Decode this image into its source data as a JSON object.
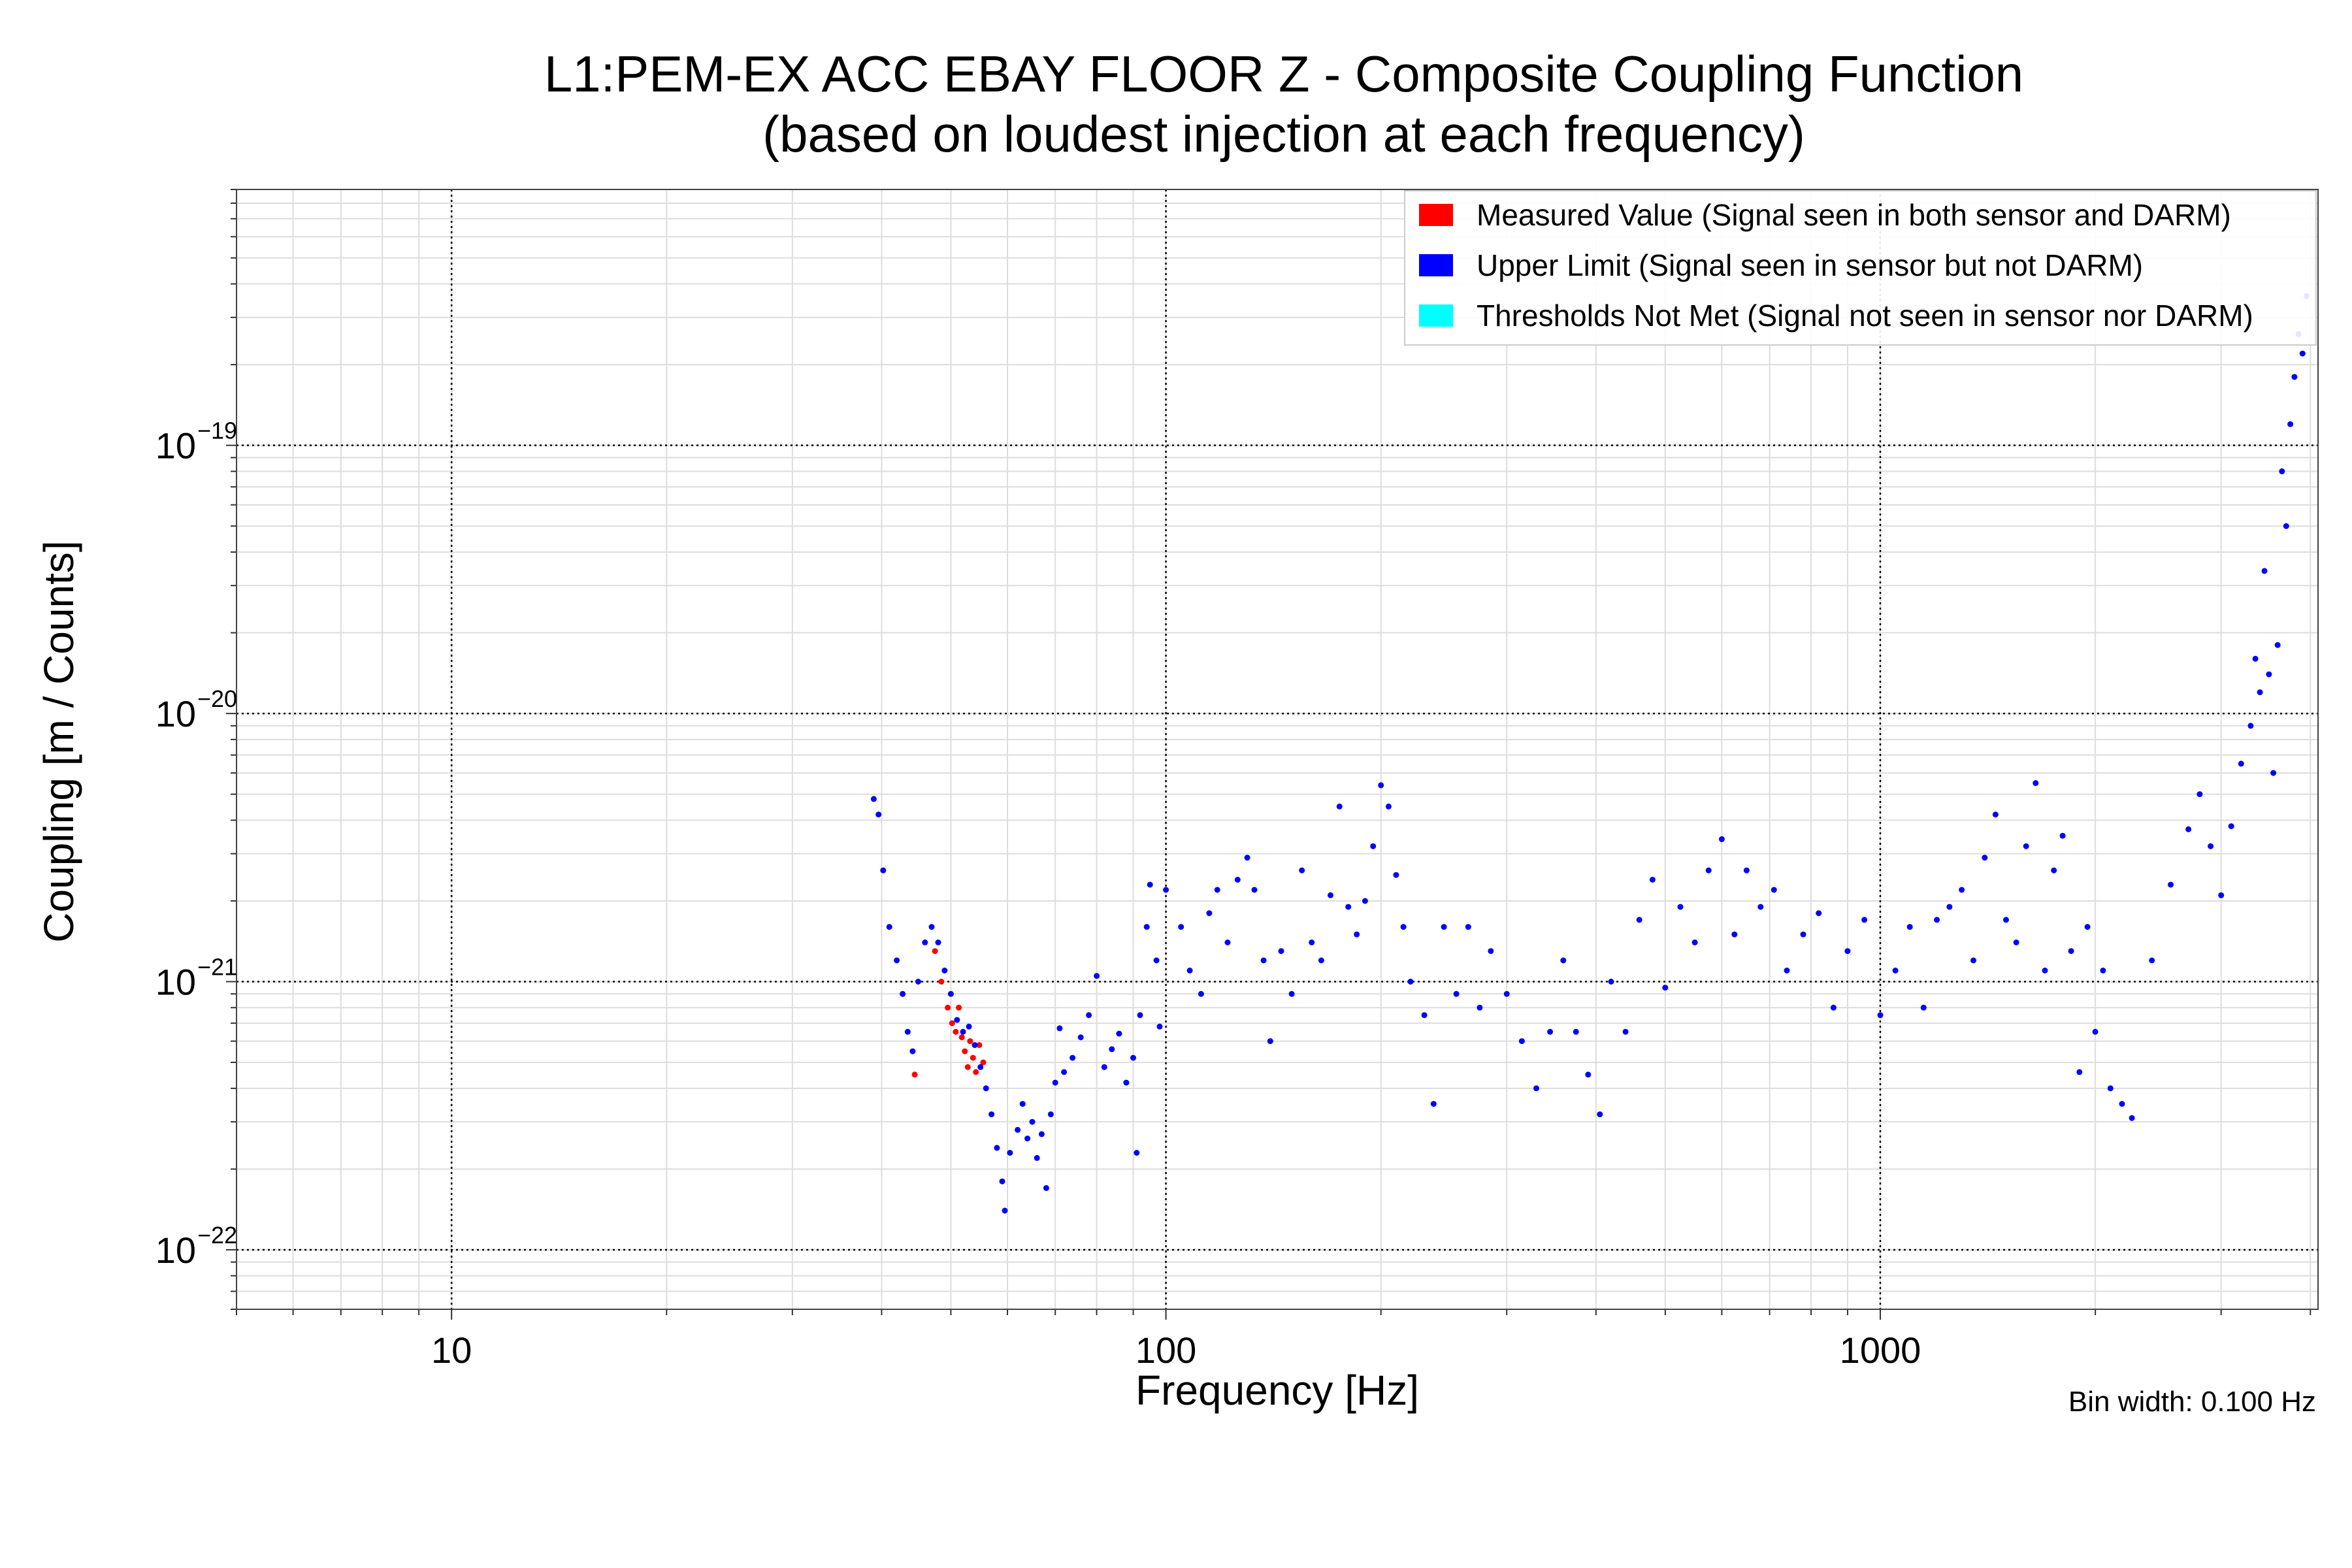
{
  "chart_data": {
    "type": "scatter",
    "title": "L1:PEM-EX ACC EBAY FLOOR Z - Composite Coupling Function",
    "subtitle": "(based on loudest injection at each frequency)",
    "xlabel": "Frequency [Hz]",
    "ylabel": "Coupling [m / Counts]",
    "xscale": "log",
    "yscale": "log",
    "xlim": [
      5,
      4100
    ],
    "ylim": [
      6e-23,
      9e-19
    ],
    "x_ticks": [
      {
        "value": 10,
        "label": "10"
      },
      {
        "value": 100,
        "label": "100"
      },
      {
        "value": 1000,
        "label": "1000"
      }
    ],
    "y_ticks": [
      {
        "value": 1e-22,
        "base": "10",
        "exp": "−22"
      },
      {
        "value": 1e-21,
        "base": "10",
        "exp": "−21"
      },
      {
        "value": 1e-20,
        "base": "10",
        "exp": "−20"
      },
      {
        "value": 1e-19,
        "base": "10",
        "exp": "−19"
      }
    ],
    "grid": true,
    "legend_position": "top-right",
    "annotation": "Bin width: 0.100 Hz",
    "series": [
      {
        "name": "Measured Value (Signal seen in both sensor and DARM)",
        "color": "#ff0000",
        "points": [
          [
            44.5,
            4.5e-22
          ],
          [
            47.5,
            1.3e-21
          ],
          [
            48.5,
            1e-21
          ],
          [
            49.5,
            8e-22
          ],
          [
            50.2,
            7e-22
          ],
          [
            50.8,
            6.5e-22
          ],
          [
            51.3,
            8e-22
          ],
          [
            51.8,
            6.2e-22
          ],
          [
            52.3,
            5.5e-22
          ],
          [
            52.8,
            4.8e-22
          ],
          [
            53.2,
            6e-22
          ],
          [
            53.7,
            5.2e-22
          ],
          [
            54.2,
            4.6e-22
          ],
          [
            54.8,
            5.8e-22
          ],
          [
            55.5,
            5e-22
          ]
        ]
      },
      {
        "name": "Upper Limit (Signal seen in sensor but not DARM)",
        "color": "#0000ff",
        "points": [
          [
            39,
            4.8e-21
          ],
          [
            39.6,
            4.2e-21
          ],
          [
            40.2,
            2.6e-21
          ],
          [
            41,
            1.6e-21
          ],
          [
            42,
            1.2e-21
          ],
          [
            42.8,
            9e-22
          ],
          [
            43.5,
            6.5e-22
          ],
          [
            44.2,
            5.5e-22
          ],
          [
            45,
            1e-21
          ],
          [
            46,
            1.4e-21
          ],
          [
            47,
            1.6e-21
          ],
          [
            48,
            1.4e-21
          ],
          [
            49,
            1.1e-21
          ],
          [
            50,
            9e-22
          ],
          [
            51,
            7.2e-22
          ],
          [
            52,
            6.5e-22
          ],
          [
            53,
            6.8e-22
          ],
          [
            54,
            5.8e-22
          ],
          [
            55,
            4.8e-22
          ],
          [
            56,
            4e-22
          ],
          [
            57,
            3.2e-22
          ],
          [
            58,
            2.4e-22
          ],
          [
            59,
            1.8e-22
          ],
          [
            59.5,
            1.4e-22
          ],
          [
            60.5,
            2.3e-22
          ],
          [
            62,
            2.8e-22
          ],
          [
            63,
            3.5e-22
          ],
          [
            64,
            2.6e-22
          ],
          [
            65,
            3e-22
          ],
          [
            66,
            2.2e-22
          ],
          [
            67,
            2.7e-22
          ],
          [
            68,
            1.7e-22
          ],
          [
            69,
            3.2e-22
          ],
          [
            70,
            4.2e-22
          ],
          [
            71,
            6.7e-22
          ],
          [
            72,
            4.6e-22
          ],
          [
            74,
            5.2e-22
          ],
          [
            76,
            6.2e-22
          ],
          [
            78,
            7.5e-22
          ],
          [
            80,
            1.05e-21
          ],
          [
            82,
            4.8e-22
          ],
          [
            84,
            5.6e-22
          ],
          [
            86,
            6.4e-22
          ],
          [
            88,
            4.2e-22
          ],
          [
            90,
            5.2e-22
          ],
          [
            91,
            2.3e-22
          ],
          [
            92,
            7.5e-22
          ],
          [
            94,
            1.6e-21
          ],
          [
            95,
            2.3e-21
          ],
          [
            97,
            1.2e-21
          ],
          [
            98,
            6.8e-22
          ],
          [
            100,
            2.2e-21
          ],
          [
            105,
            1.6e-21
          ],
          [
            108,
            1.1e-21
          ],
          [
            112,
            9e-22
          ],
          [
            115,
            1.8e-21
          ],
          [
            118,
            2.2e-21
          ],
          [
            122,
            1.4e-21
          ],
          [
            126,
            2.4e-21
          ],
          [
            130,
            2.9e-21
          ],
          [
            133,
            2.2e-21
          ],
          [
            137,
            1.2e-21
          ],
          [
            140,
            6e-22
          ],
          [
            145,
            1.3e-21
          ],
          [
            150,
            9e-22
          ],
          [
            155,
            2.6e-21
          ],
          [
            160,
            1.4e-21
          ],
          [
            165,
            1.2e-21
          ],
          [
            170,
            2.1e-21
          ],
          [
            175,
            4.5e-21
          ],
          [
            180,
            1.9e-21
          ],
          [
            185,
            1.5e-21
          ],
          [
            190,
            2e-21
          ],
          [
            195,
            3.2e-21
          ],
          [
            200,
            5.4e-21
          ],
          [
            205,
            4.5e-21
          ],
          [
            210,
            2.5e-21
          ],
          [
            215,
            1.6e-21
          ],
          [
            220,
            1e-21
          ],
          [
            230,
            7.5e-22
          ],
          [
            237,
            3.5e-22
          ],
          [
            245,
            1.6e-21
          ],
          [
            255,
            9e-22
          ],
          [
            265,
            1.6e-21
          ],
          [
            275,
            8e-22
          ],
          [
            285,
            1.3e-21
          ],
          [
            300,
            9e-22
          ],
          [
            315,
            6e-22
          ],
          [
            330,
            4e-22
          ],
          [
            345,
            6.5e-22
          ],
          [
            360,
            1.2e-21
          ],
          [
            375,
            6.5e-22
          ],
          [
            390,
            4.5e-22
          ],
          [
            405,
            3.2e-22
          ],
          [
            420,
            1e-21
          ],
          [
            440,
            6.5e-22
          ],
          [
            460,
            1.7e-21
          ],
          [
            480,
            2.4e-21
          ],
          [
            500,
            9.5e-22
          ],
          [
            525,
            1.9e-21
          ],
          [
            550,
            1.4e-21
          ],
          [
            575,
            2.6e-21
          ],
          [
            600,
            3.4e-21
          ],
          [
            625,
            1.5e-21
          ],
          [
            650,
            2.6e-21
          ],
          [
            680,
            1.9e-21
          ],
          [
            710,
            2.2e-21
          ],
          [
            740,
            1.1e-21
          ],
          [
            780,
            1.5e-21
          ],
          [
            820,
            1.8e-21
          ],
          [
            860,
            8e-22
          ],
          [
            900,
            1.3e-21
          ],
          [
            950,
            1.7e-21
          ],
          [
            1000,
            7.5e-22
          ],
          [
            1050,
            1.1e-21
          ],
          [
            1100,
            1.6e-21
          ],
          [
            1150,
            8e-22
          ],
          [
            1200,
            1.7e-21
          ],
          [
            1250,
            1.9e-21
          ],
          [
            1300,
            2.2e-21
          ],
          [
            1350,
            1.2e-21
          ],
          [
            1400,
            2.9e-21
          ],
          [
            1450,
            4.2e-21
          ],
          [
            1500,
            1.7e-21
          ],
          [
            1550,
            1.4e-21
          ],
          [
            1600,
            3.2e-21
          ],
          [
            1650,
            5.5e-21
          ],
          [
            1700,
            1.1e-21
          ],
          [
            1750,
            2.6e-21
          ],
          [
            1800,
            3.5e-21
          ],
          [
            1850,
            1.3e-21
          ],
          [
            1900,
            4.6e-22
          ],
          [
            1950,
            1.6e-21
          ],
          [
            2000,
            6.5e-22
          ],
          [
            2050,
            1.1e-21
          ],
          [
            2100,
            4e-22
          ],
          [
            2180,
            3.5e-22
          ],
          [
            2250,
            3.1e-22
          ],
          [
            2400,
            1.2e-21
          ],
          [
            2550,
            2.3e-21
          ],
          [
            2700,
            3.7e-21
          ],
          [
            2800,
            5e-21
          ],
          [
            2900,
            3.2e-21
          ],
          [
            3000,
            2.1e-21
          ],
          [
            3100,
            3.8e-21
          ],
          [
            3200,
            6.5e-21
          ],
          [
            3300,
            9e-21
          ],
          [
            3350,
            1.6e-20
          ],
          [
            3400,
            1.2e-20
          ],
          [
            3450,
            3.4e-20
          ],
          [
            3500,
            1.4e-20
          ],
          [
            3550,
            6e-21
          ],
          [
            3600,
            1.8e-20
          ],
          [
            3650,
            8e-20
          ],
          [
            3700,
            5e-20
          ],
          [
            3750,
            1.2e-19
          ],
          [
            3800,
            1.8e-19
          ],
          [
            3850,
            2.6e-19
          ],
          [
            3900,
            2.2e-19
          ],
          [
            3950,
            3.6e-19
          ]
        ]
      },
      {
        "name": "Thresholds Not Met (Signal not seen in sensor nor DARM)",
        "color": "#00ffff",
        "points": []
      }
    ]
  }
}
